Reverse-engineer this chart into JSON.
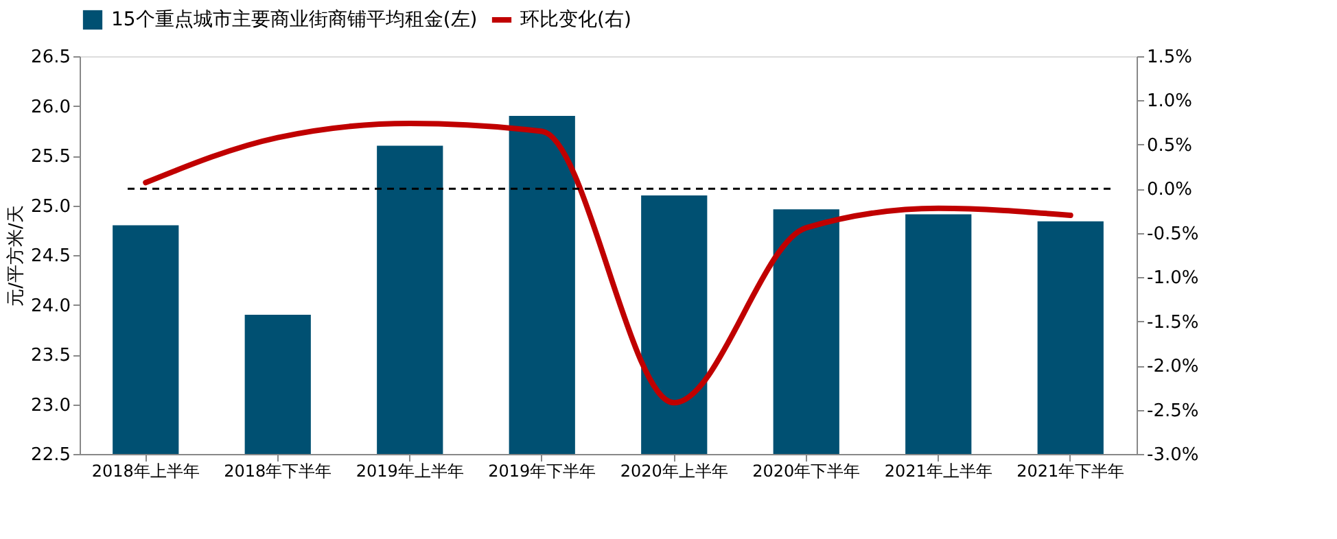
{
  "chart_data": {
    "type": "bar",
    "categories": [
      "2018年上半年",
      "2018年下半年",
      "2019年上半年",
      "2019年下半年",
      "2020年上半年",
      "2020年下半年",
      "2021年上半年",
      "2021年下半年"
    ],
    "ylabel": "元/平方米/天",
    "ylim": [
      22.5,
      26.5
    ],
    "yticks": [
      {
        "value": 22.5,
        "label": "22.5"
      },
      {
        "value": 23,
        "label": "23.0"
      },
      {
        "value": 23.5,
        "label": "23.5"
      },
      {
        "value": 24,
        "label": "24.0"
      },
      {
        "value": 24.5,
        "label": "24.5"
      },
      {
        "value": 25,
        "label": "25.0"
      },
      {
        "value": 25.5,
        "label": "25.5"
      },
      {
        "value": 26,
        "label": "26.0"
      },
      {
        "value": 26.5,
        "label": "26.5"
      }
    ],
    "y2lim": [
      -3.0,
      1.5
    ],
    "y2ticks": [
      {
        "value": -3,
        "label": "-3.0%"
      },
      {
        "value": -2.5,
        "label": "-2.5%"
      },
      {
        "value": -2,
        "label": "-2.0%"
      },
      {
        "value": -1.5,
        "label": "-1.5%"
      },
      {
        "value": -1,
        "label": "-1.0%"
      },
      {
        "value": -0.5,
        "label": "-0.5%"
      },
      {
        "value": 0,
        "label": "0.0%"
      },
      {
        "value": 0.5,
        "label": "0.5%"
      },
      {
        "value": 1,
        "label": "1.0%"
      },
      {
        "value": 1.5,
        "label": "1.5%"
      }
    ],
    "series": [
      {
        "name": "15个重点城市主要商业街商铺平均租金(左)",
        "color": "#005072",
        "values": [
          24.8,
          23.9,
          25.6,
          25.9,
          25.1,
          24.96,
          24.91,
          24.84
        ]
      },
      {
        "name": "环比变化(右)",
        "type": "line",
        "axis": "y2",
        "color": "#c00000",
        "values": [
          0.07,
          0.58,
          0.74,
          0.65,
          -2.42,
          -0.44,
          -0.22,
          -0.3
        ]
      }
    ],
    "ref_lines": [
      {
        "axis": "y2",
        "value": 0,
        "color": "#000000",
        "line_style": "dashed"
      }
    ],
    "legend": "top",
    "grid": false,
    "marker": "none",
    "line_style": "solid"
  }
}
